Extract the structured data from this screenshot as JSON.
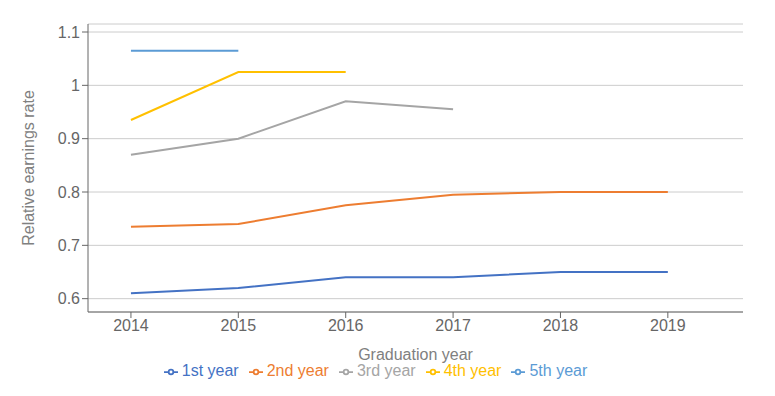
{
  "chart_data": {
    "type": "line",
    "x": [
      2014,
      2015,
      2016,
      2017,
      2018,
      2019
    ],
    "series": [
      {
        "name": "1st year",
        "color": "#4472C4",
        "values": [
          0.61,
          0.62,
          0.64,
          0.64,
          0.65,
          0.65
        ]
      },
      {
        "name": "2nd year",
        "color": "#ED7D31",
        "values": [
          0.735,
          0.74,
          0.775,
          0.795,
          0.8,
          0.8
        ]
      },
      {
        "name": "3rd year",
        "color": "#A5A5A5",
        "values": [
          0.87,
          0.9,
          0.97,
          0.955,
          null,
          null
        ]
      },
      {
        "name": "4th year",
        "color": "#FFC000",
        "values": [
          0.935,
          1.025,
          1.025,
          null,
          null,
          null
        ]
      },
      {
        "name": "5th year",
        "color": "#5B9BD5",
        "values": [
          1.065,
          1.065,
          null,
          null,
          null,
          null
        ]
      }
    ],
    "xlabel": "Graduation year",
    "ylabel": "Relative earnings rate",
    "xlim": [
      2013.6,
      2019.7
    ],
    "xticks": [
      2014,
      2015,
      2016,
      2017,
      2018,
      2019
    ],
    "ylim": [
      0.575,
      1.115
    ],
    "yticks": [
      0.6,
      0.7,
      0.8,
      0.9,
      1,
      1.1
    ],
    "grid": true,
    "legend": "bottom"
  }
}
